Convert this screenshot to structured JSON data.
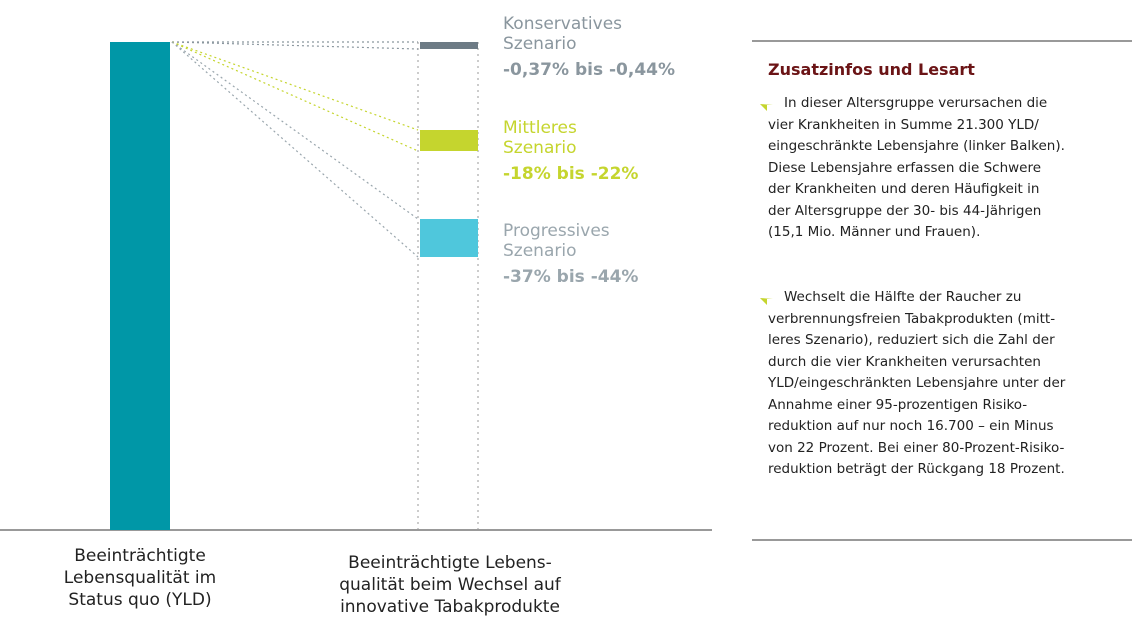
{
  "scenarios": [
    {
      "name_lines": [
        "Konservatives",
        "Szenario"
      ],
      "range": "-0,37% bis -0,44%"
    },
    {
      "name_lines": [
        "Mittleres",
        "Szenario"
      ],
      "range": "-18% bis -22%"
    },
    {
      "name_lines": [
        "Progressives",
        "Szenario"
      ],
      "range": "-37% bis -44%"
    }
  ],
  "left_label": [
    "Beeinträchtigte",
    "Lebensqualität im",
    "Status quo (YLD)"
  ],
  "right_label": [
    "Beeinträchtigte Lebens-",
    "qualität beim Wechsel auf",
    "innovative Tabakprodukte"
  ],
  "info": {
    "title": "Zusatzinfos und Lesart",
    "paragraphs": [
      [
        "In dieser Altersgruppe verursachen die",
        "vier Krankheiten in Summe 21.300 YLD/",
        "eingeschränkte Lebensjahre (linker Balken).",
        "Diese Lebensjahre erfassen die Schwere",
        "der Krankheiten und deren Häufigkeit in",
        "der Altersgruppe der 30- bis 44-Jährigen",
        "(15,1 Mio. Männer und Frauen)."
      ],
      [
        "Wechselt die Hälfte der Raucher zu",
        "verbrennungsfreien Tabakprodukten (mitt-",
        "leres Szenario), reduziert sich die Zahl der",
        "durch die vier Krankheiten verursachten",
        "YLD/eingeschränkten Lebensjahre unter der",
        "Annahme einer 95-prozentigen Risiko-",
        "reduktion auf nur noch 16.700 – ein Minus",
        "von 22 Prozent. Bei einer 80-Prozent-Risiko-",
        "reduktion beträgt der Rückgang 18 Prozent."
      ]
    ]
  }
}
